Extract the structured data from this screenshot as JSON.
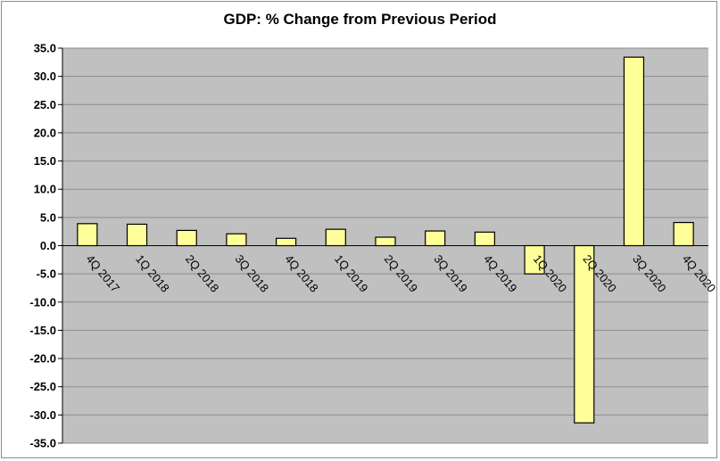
{
  "chart_data": {
    "type": "bar",
    "title": "GDP: % Change from Previous Period",
    "xlabel": "",
    "ylabel": "",
    "categories": [
      "4Q 2017",
      "1Q 2018",
      "2Q 2018",
      "3Q 2018",
      "4Q 2018",
      "1Q 2019",
      "2Q 2019",
      "3Q 2019",
      "4Q 2019",
      "1Q 2020",
      "2Q 2020",
      "3Q 2020",
      "4Q 2020"
    ],
    "values": [
      3.9,
      3.8,
      2.7,
      2.1,
      1.3,
      2.9,
      1.5,
      2.6,
      2.4,
      -5.0,
      -31.4,
      33.4,
      4.1
    ],
    "ylim": [
      -35.0,
      35.0
    ],
    "yticks": [
      "35.0",
      "30.0",
      "25.0",
      "20.0",
      "15.0",
      "10.0",
      "5.0",
      "0.0",
      "-5.0",
      "-10.0",
      "-15.0",
      "-20.0",
      "-25.0",
      "-30.0",
      "-35.0"
    ],
    "grid": true,
    "legend": "none",
    "colors": {
      "bar_fill": "#ffff99",
      "bar_stroke": "#000000",
      "plot_bg": "#c0c0c0",
      "grid": "#8c8c8c"
    }
  }
}
